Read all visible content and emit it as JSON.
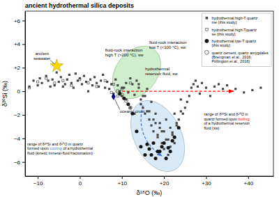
{
  "chart_data": {
    "type": "scatter",
    "title": "ancient hydrothermal silica deposits",
    "xlabel": "δ¹⁸O (‰)",
    "ylabel": "δ³⁰Si (‰)",
    "xlim": [
      -13,
      46
    ],
    "ylim": [
      -7.2,
      6.8
    ],
    "xticks": [
      {
        "value": -10,
        "label": "−10"
      },
      0,
      {
        "value": 10,
        "label": "+10"
      },
      {
        "value": 20,
        "label": "+20"
      },
      {
        "value": 30,
        "label": "+30"
      },
      {
        "value": 40,
        "label": "+40"
      }
    ],
    "yticks": [
      {
        "value": -6,
        "label": "−6"
      },
      {
        "value": -4,
        "label": "−4"
      },
      {
        "value": -2,
        "label": "−2"
      },
      0,
      {
        "value": 2,
        "label": "+2"
      },
      {
        "value": 4,
        "label": "+4"
      },
      {
        "value": 6,
        "label": "+6"
      }
    ],
    "grid": false,
    "legend": "upper right",
    "series": [
      {
        "name": "hydrothermal high-T quartz\nme (this study)",
        "color": "#444444",
        "marker": "square",
        "x": [
          -12.0,
          -11.0,
          -10.0,
          -9.5,
          -9.0,
          -8.0,
          -7.5,
          -7.0,
          -6.5,
          -6.0,
          -5.5,
          -5.0,
          -4.5,
          -4.0,
          -3.5,
          -3.0,
          -2.5,
          -2.0,
          -1.5,
          -1.0,
          -0.5,
          0.0,
          0.5,
          1.0,
          1.5,
          2.0,
          2.5,
          3.0,
          3.5,
          4.0,
          4.5,
          5.0,
          5.5,
          6.0,
          6.5,
          7.0,
          7.5,
          8.0,
          8.5,
          9.0,
          9.5,
          10.0,
          10.5,
          11.0,
          11.5,
          12.0,
          12.5,
          13.0,
          13.5,
          14.0,
          14.5,
          15.0,
          15.5,
          16.0,
          16.5,
          17.0,
          17.5,
          18.0,
          18.5,
          19.0,
          19.5,
          20.0,
          20.5,
          21.0,
          21.5,
          22.0,
          22.5,
          23.0,
          23.5,
          24.0,
          24.5,
          25.0,
          25.5,
          26.0,
          26.5,
          27.0,
          27.5,
          28.0,
          28.5,
          29.0,
          30.0,
          31.0,
          32.0,
          33.0,
          34.0,
          35.0,
          37.0,
          39.0,
          41.0,
          43.0,
          14.0,
          15.0,
          16.0,
          17.0,
          18.0,
          19.0,
          20.0,
          21.0,
          22.0,
          23.0,
          24.0,
          10.0,
          11.0,
          12.0,
          13.0,
          14.5,
          15.5,
          16.5,
          17.5,
          18.5,
          19.5,
          20.5,
          21.5,
          22.5
        ],
        "values": [
          0.4,
          0.9,
          0.5,
          1.1,
          0.7,
          1.3,
          0.9,
          0.4,
          1.0,
          0.5,
          1.6,
          0.8,
          1.2,
          0.4,
          0.6,
          1.0,
          1.4,
          0.7,
          0.3,
          1.5,
          0.9,
          1.1,
          0.6,
          1.3,
          0.8,
          0.0,
          1.0,
          0.5,
          1.2,
          0.7,
          0.4,
          0.9,
          1.4,
          0.3,
          0.8,
          0.2,
          0.6,
          -0.2,
          1.0,
          0.5,
          0.0,
          -0.4,
          0.3,
          0.7,
          -0.1,
          1.1,
          0.6,
          -0.3,
          0.9,
          0.3,
          -0.7,
          -1.4,
          -1.9,
          -1.7,
          -2.4,
          -2.9,
          -3.4,
          -2.7,
          -3.9,
          -3.1,
          -4.4,
          -4.9,
          -4.1,
          -5.4,
          -4.7,
          -3.7,
          -4.4,
          -2.9,
          -2.4,
          -1.7,
          -1.9,
          -1.4,
          -0.9,
          -0.4,
          0.3,
          0.6,
          0.9,
          0.4,
          -0.2,
          0.7,
          0.3,
          -0.4,
          0.4,
          0.6,
          0.2,
          0.5,
          0.2,
          -0.1,
          0.1,
          0.3,
          0.6,
          -0.4,
          0.2,
          -0.9,
          -1.9,
          -2.7,
          -3.4,
          -4.1,
          -3.5,
          -2.7,
          -0.7,
          0.3,
          -0.7,
          -1.4,
          -1.9,
          -1.1,
          -0.4,
          -1.7,
          -2.4,
          -3.7,
          -3.4,
          -2.4,
          -3.1,
          -1.9
        ]
      },
      {
        "name": "hydrothermal high-Tquartz\nse (this study)",
        "color": "#444444",
        "marker": "square-open",
        "x": [
          -12.0,
          -10.0,
          -8.0,
          -6.0,
          -4.0,
          -2.0,
          0.0,
          2.0,
          4.0,
          6.0,
          8.0,
          10.0,
          12.0,
          7.5,
          9.0
        ],
        "values": [
          0.3,
          0.8,
          1.1,
          0.7,
          0.9,
          0.5,
          1.0,
          0.7,
          0.4,
          0.9,
          0.6,
          0.2,
          0.7,
          -0.1,
          -0.4
        ]
      },
      {
        "name": "hydrothermal low-T quartz\n(this study)",
        "color": "#111111",
        "marker": "circle",
        "x": [
          9.5,
          10.5,
          11.5,
          12.5,
          13.5,
          14.5,
          15.5,
          16.5,
          17.5,
          18.5,
          19.5,
          20.5,
          21.5,
          22.5,
          23.5,
          17.0,
          18.0,
          19.0,
          20.0,
          16.0,
          21.0,
          22.0
        ],
        "values": [
          -0.2,
          -0.6,
          -1.1,
          -1.9,
          -3.4,
          -4.7,
          -5.4,
          -4.9,
          -4.4,
          -5.1,
          -4.7,
          -5.7,
          -5.1,
          -3.9,
          -3.1,
          -5.4,
          -5.7,
          -5.1,
          -4.4,
          -4.5,
          -4.8,
          -4.2
        ]
      },
      {
        "name": "quartz cement, quartz amygdales\n(Brenqman et al., 2016;\nPollington et al., 2016)",
        "color": "#333333",
        "marker": "circle-open",
        "x": [
          9.0,
          10.0,
          11.0,
          12.0
        ],
        "values": [
          0.0,
          -0.3,
          -0.8,
          -1.4
        ]
      }
    ],
    "regions": [
      {
        "color": "#b8d8f0",
        "cx": 18.5,
        "cy": -3.8,
        "width": 13.0,
        "height": 5.5,
        "angle": -12
      },
      {
        "color": "#a8e0a0",
        "cx": 13.5,
        "cy": 1.6,
        "width": 11.5,
        "height": 4.2,
        "angle": 8
      }
    ],
    "trend_arrow": {
      "x0": 9.0,
      "x1": 36.5,
      "y": 0.0,
      "color": "red",
      "line_style": "dashed"
    },
    "boiling_arrow": {
      "x0": 15.0,
      "y0": -1.2,
      "x1": 19.5,
      "y1": -5.5,
      "color": "#4477bb",
      "line_style": "dashed"
    },
    "annotations": [
      {
        "text": "ancient\nseawater",
        "x": -9.0,
        "y": 2.6,
        "point": {
          "x": -5.5,
          "y": 2.15,
          "color": "#FFD700",
          "marker": "star"
        }
      },
      {
        "text": "fluid-rock interaction\nhigh T (>200 °C), sw",
        "x": 6.0,
        "y": 2.9
      },
      {
        "text": "fluid-rock interaction\nlow T (<100 °C), sw",
        "x": 16.5,
        "y": 4.3
      },
      {
        "text": "hydrothermal\nreservoir fluid, sw",
        "x": 15.5,
        "y": 2.1
      },
      {
        "text": "oceanic crust",
        "x": 9.5,
        "y": -1.55,
        "point": {
          "x": 8.0,
          "y": -0.45,
          "color": "#000080",
          "marker": "diamond"
        }
      },
      {
        "x": -12.5,
        "y": -4.3,
        "lines": [
          [
            {
              "text": "range of δ³⁰Si and δ¹⁸O in quartz"
            }
          ],
          [
            {
              "text": "formed upon "
            },
            {
              "text": "cooling",
              "color": "#3388cc"
            },
            {
              "text": " of a hydrothermal"
            }
          ],
          [
            {
              "text": "fluid (kinetic mineral-fluid fractionation)"
            }
          ]
        ]
      },
      {
        "x": 29.5,
        "y": -1.8,
        "lines": [
          [
            {
              "text": "range of δ³⁰Si and δ¹⁸O in"
            }
          ],
          [
            {
              "text": "quartz formed upon "
            },
            {
              "text": "boiling",
              "color": "red"
            }
          ],
          [
            {
              "text": "of a hydrothermal reservoir"
            }
          ],
          [
            {
              "text": "fluid (sw)"
            }
          ]
        ]
      }
    ]
  }
}
